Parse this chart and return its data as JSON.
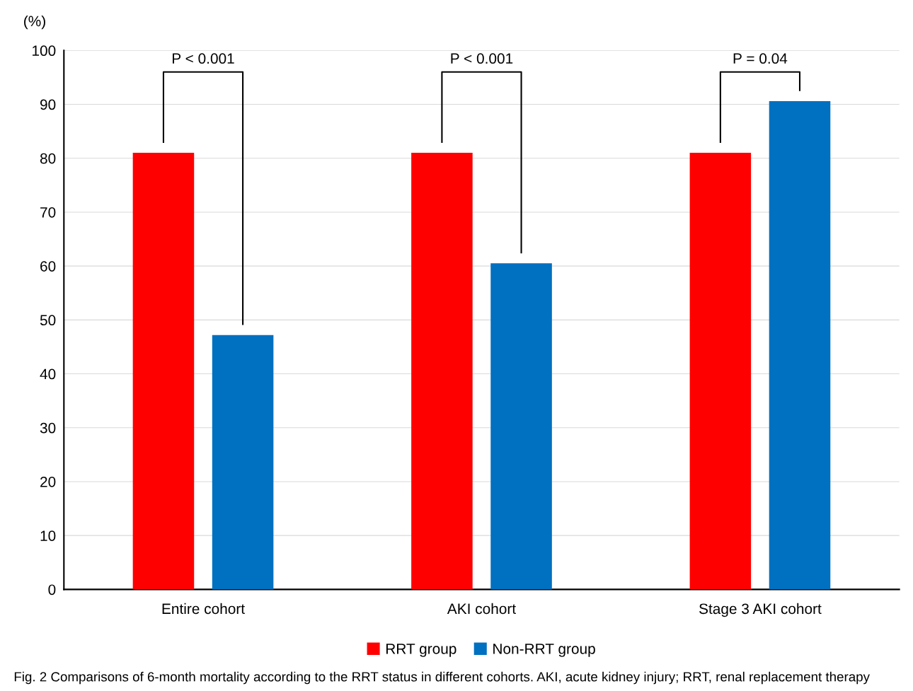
{
  "chart_data": {
    "type": "bar",
    "ylabel": "(%)",
    "categories": [
      "Entire cohort",
      "AKI cohort",
      "Stage 3 AKI cohort"
    ],
    "series": [
      {
        "name": "RRT group",
        "color": "#ff0000",
        "values": [
          81,
          81,
          81
        ]
      },
      {
        "name": "Non-RRT group",
        "color": "#0070c0",
        "values": [
          47.2,
          60.5,
          90.6
        ]
      }
    ],
    "ylim": [
      0,
      100
    ],
    "yticks": [
      0,
      10,
      20,
      30,
      40,
      50,
      60,
      70,
      80,
      90,
      100
    ],
    "grid": "y",
    "legend": "bottom",
    "annotations": [
      "P < 0.001",
      "P < 0.001",
      "P = 0.04",
      "Fig. 2 Comparisons of 6-month mortality according to the RRT status in different cohorts. AKI, acute kidney injury; RRT, renal replacement therapy"
    ]
  }
}
